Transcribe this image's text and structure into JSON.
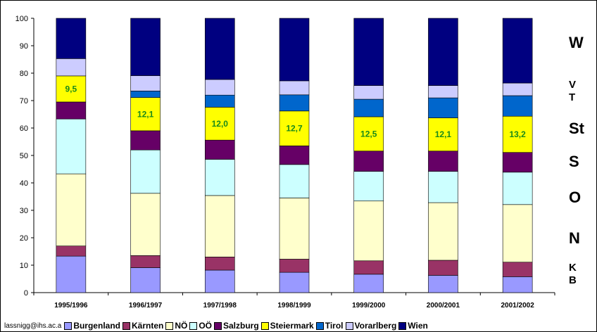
{
  "chart_data": {
    "type": "bar",
    "stacked": true,
    "ylim": [
      0,
      100
    ],
    "yticks": [
      0,
      10,
      20,
      30,
      40,
      50,
      60,
      70,
      80,
      90,
      100
    ],
    "grid": false,
    "legend_position": "bottom",
    "categories": [
      "1995/1996",
      "1996/1997",
      "1997/1998",
      "1998/1999",
      "1999/2000",
      "2000/2001",
      "2001/2002"
    ],
    "series": [
      {
        "name": "Burgenland",
        "color": "#9999FF",
        "values": [
          13.3,
          9.1,
          8.2,
          7.4,
          6.7,
          6.3,
          5.8
        ]
      },
      {
        "name": "Kärnten",
        "color": "#993366",
        "values": [
          3.7,
          4.4,
          4.8,
          4.8,
          4.9,
          5.5,
          5.3
        ]
      },
      {
        "name": "NÖ",
        "color": "#FFFFCC",
        "values": [
          26.3,
          22.7,
          22.4,
          22.3,
          21.8,
          21.0,
          21.0
        ]
      },
      {
        "name": "OÖ",
        "color": "#CCFFFF",
        "values": [
          20.0,
          15.8,
          13.2,
          12.2,
          10.8,
          11.4,
          11.8
        ]
      },
      {
        "name": "Salzburg",
        "color": "#660066",
        "values": [
          6.2,
          7.0,
          7.0,
          6.8,
          7.4,
          7.4,
          7.2
        ]
      },
      {
        "name": "Steiermark",
        "color": "#FFFF00",
        "values": [
          9.5,
          12.1,
          12.0,
          12.7,
          12.5,
          12.1,
          13.2
        ]
      },
      {
        "name": "Tirol",
        "color": "#0066CC",
        "values": [
          0.0,
          2.4,
          4.4,
          5.9,
          6.4,
          7.3,
          7.5
        ]
      },
      {
        "name": "Vorarlberg",
        "color": "#CCCCFF",
        "values": [
          6.3,
          5.6,
          5.7,
          5.1,
          5.0,
          4.5,
          4.6
        ]
      },
      {
        "name": "Wien",
        "color": "#000080",
        "values": [
          14.7,
          20.9,
          22.3,
          22.8,
          24.5,
          24.5,
          23.6
        ]
      }
    ],
    "data_labels": {
      "series": "Steiermark",
      "labels": [
        "9,5",
        "12,1",
        "12,0",
        "12,7",
        "12,5",
        "12,1",
        "13,2"
      ]
    }
  },
  "side_labels": [
    "W",
    "V",
    "T",
    "St",
    "S",
    "O",
    "N",
    "K",
    "B"
  ],
  "legend_credit": "lassnigg@ihs.ac.a"
}
